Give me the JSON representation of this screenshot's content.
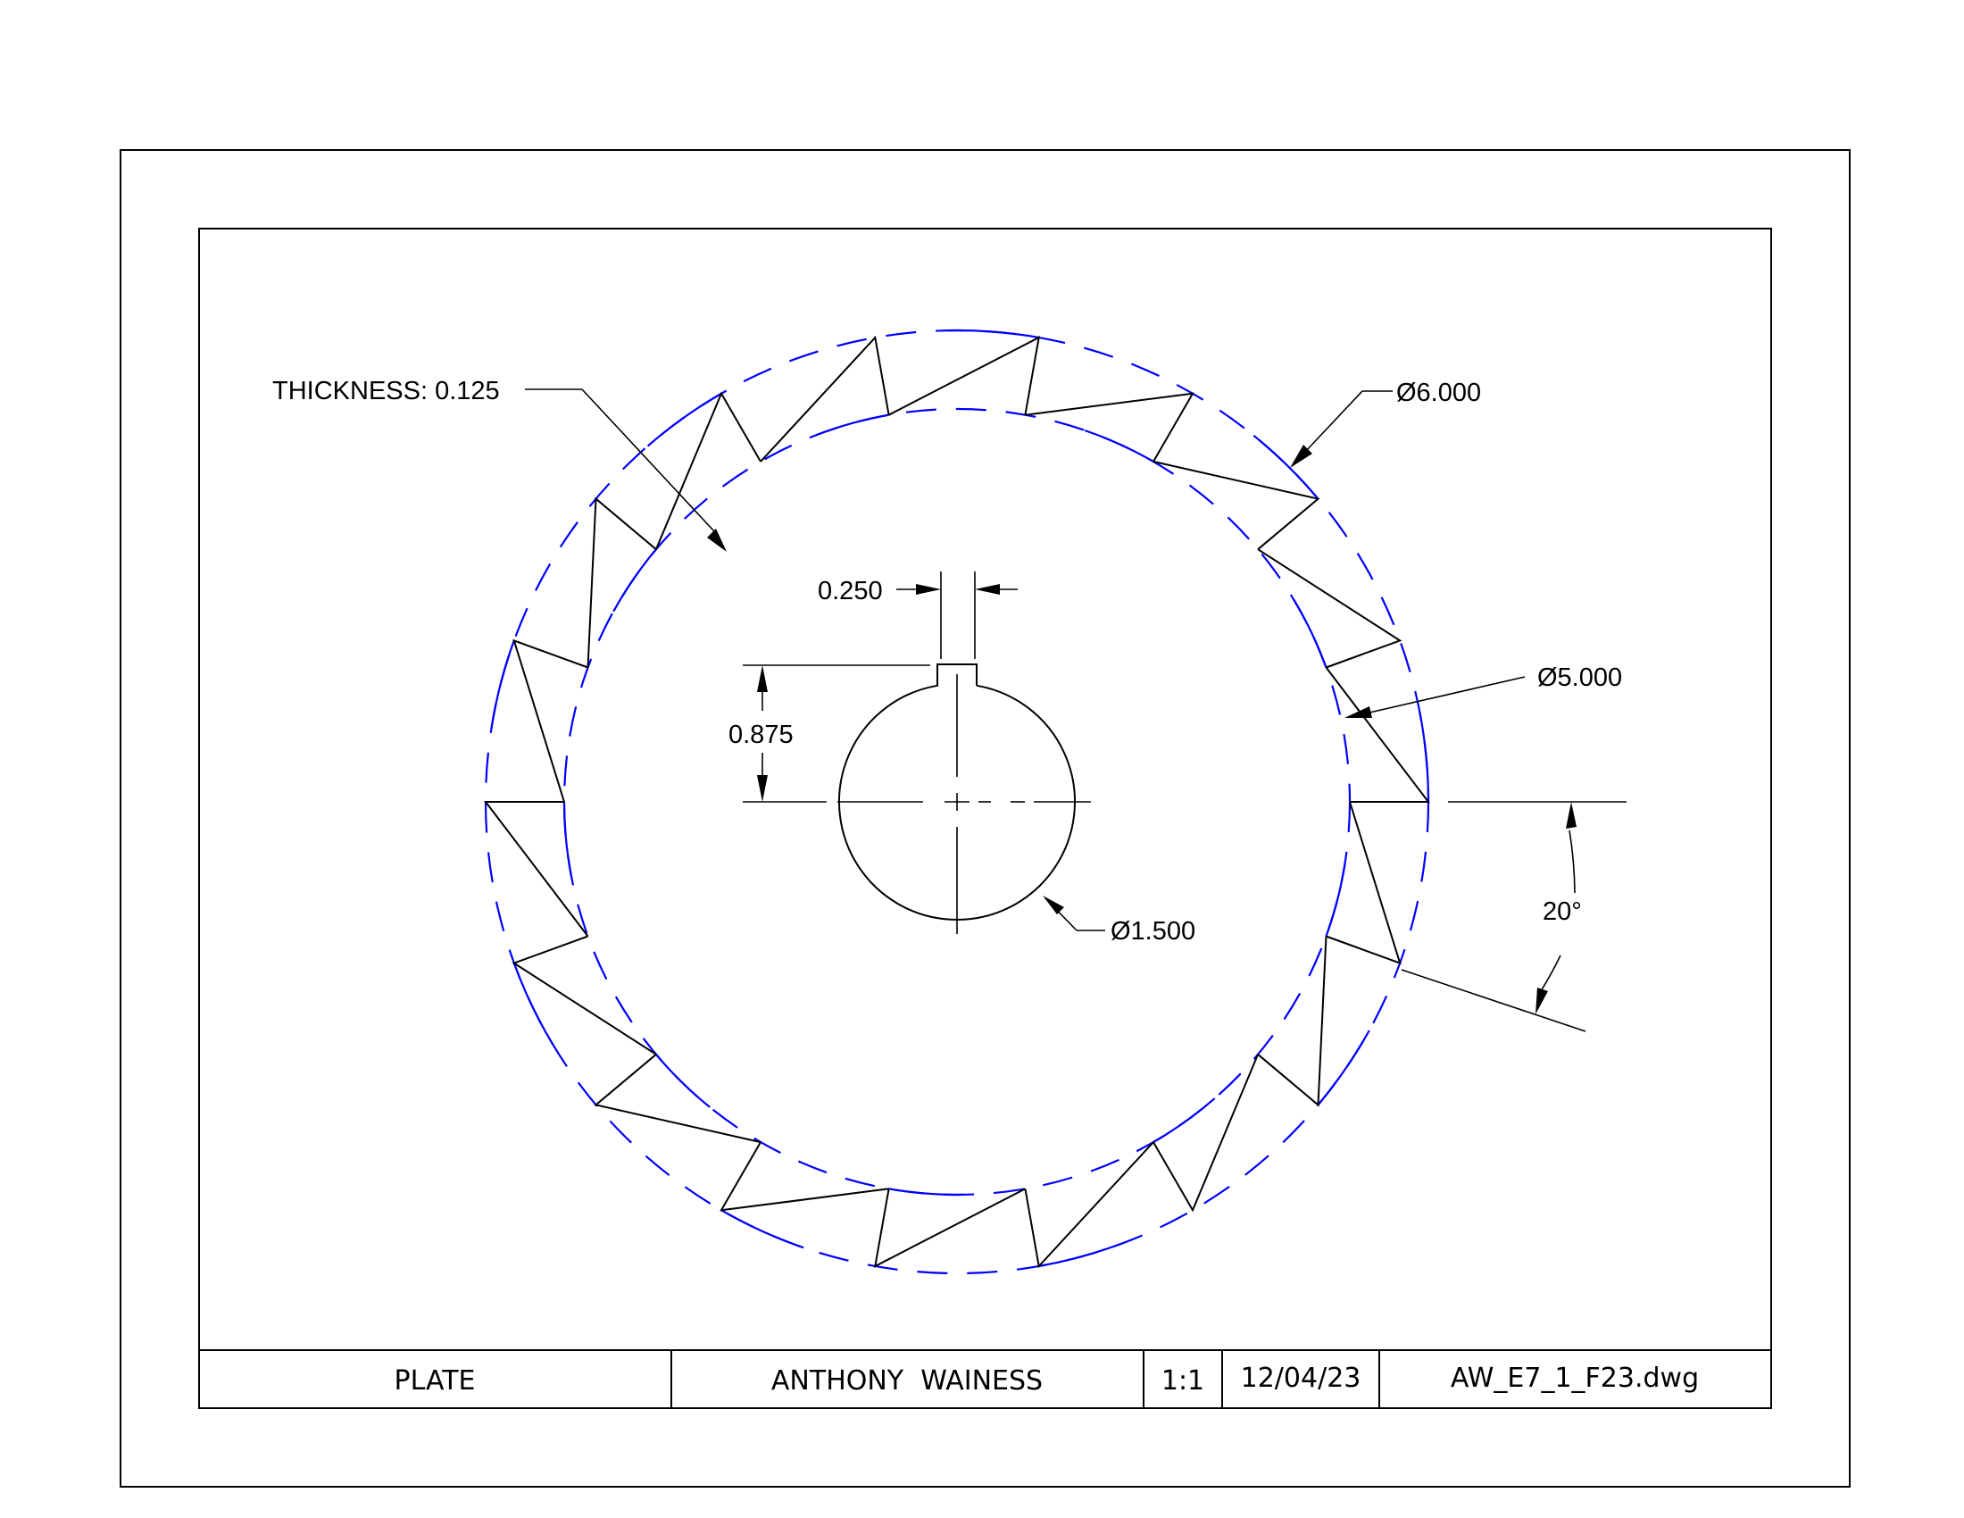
{
  "annotations": {
    "thickness": "THICKNESS: 0.125",
    "outer_diameter": "Ø6.000",
    "root_diameter": "Ø5.000",
    "bore_diameter": "Ø1.500",
    "keyway_width": "0.250",
    "keyway_height": "0.875",
    "tooth_angle": "20°"
  },
  "title_block": {
    "part_name": "PLATE",
    "drafter": "ANTHONY  WAINESS",
    "scale": "1:1",
    "date": "12/04/23",
    "file_name": "AW_E7_1_F23.dwg"
  },
  "part": {
    "tooth_count": 18,
    "tooth_pitch_deg": 20,
    "outer_diameter_in": 6.0,
    "root_diameter_in": 5.0,
    "bore_diameter_in": 1.5,
    "keyway_width_in": 0.25,
    "keyway_depth_from_center_in": 0.875,
    "thickness_in": 0.125
  },
  "colors": {
    "lines": "#000000",
    "construction_circles": "#0000ff",
    "background": "#ffffff"
  }
}
